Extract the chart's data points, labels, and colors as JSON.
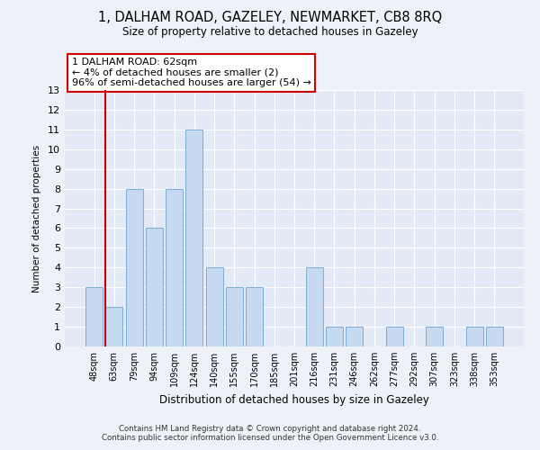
{
  "title_line1": "1, DALHAM ROAD, GAZELEY, NEWMARKET, CB8 8RQ",
  "title_line2": "Size of property relative to detached houses in Gazeley",
  "xlabel": "Distribution of detached houses by size in Gazeley",
  "ylabel": "Number of detached properties",
  "categories": [
    "48sqm",
    "63sqm",
    "79sqm",
    "94sqm",
    "109sqm",
    "124sqm",
    "140sqm",
    "155sqm",
    "170sqm",
    "185sqm",
    "201sqm",
    "216sqm",
    "231sqm",
    "246sqm",
    "262sqm",
    "277sqm",
    "292sqm",
    "307sqm",
    "323sqm",
    "338sqm",
    "353sqm"
  ],
  "values": [
    3,
    2,
    8,
    6,
    8,
    11,
    4,
    3,
    3,
    0,
    0,
    4,
    1,
    1,
    0,
    1,
    0,
    1,
    0,
    1,
    1
  ],
  "bar_color": "#c5d9f0",
  "bar_edge_color": "#7bafd4",
  "highlight_bar_index": 1,
  "highlight_line_color": "#cc0000",
  "ylim": [
    0,
    13
  ],
  "yticks": [
    0,
    1,
    2,
    3,
    4,
    5,
    6,
    7,
    8,
    9,
    10,
    11,
    12,
    13
  ],
  "annotation_text": "1 DALHAM ROAD: 62sqm\n← 4% of detached houses are smaller (2)\n96% of semi-detached houses are larger (54) →",
  "annotation_box_color": "#ffffff",
  "annotation_box_edge": "#cc0000",
  "footer_line1": "Contains HM Land Registry data © Crown copyright and database right 2024.",
  "footer_line2": "Contains public sector information licensed under the Open Government Licence v3.0.",
  "background_color": "#eef2f8",
  "plot_bg_color": "#e4eaf5"
}
